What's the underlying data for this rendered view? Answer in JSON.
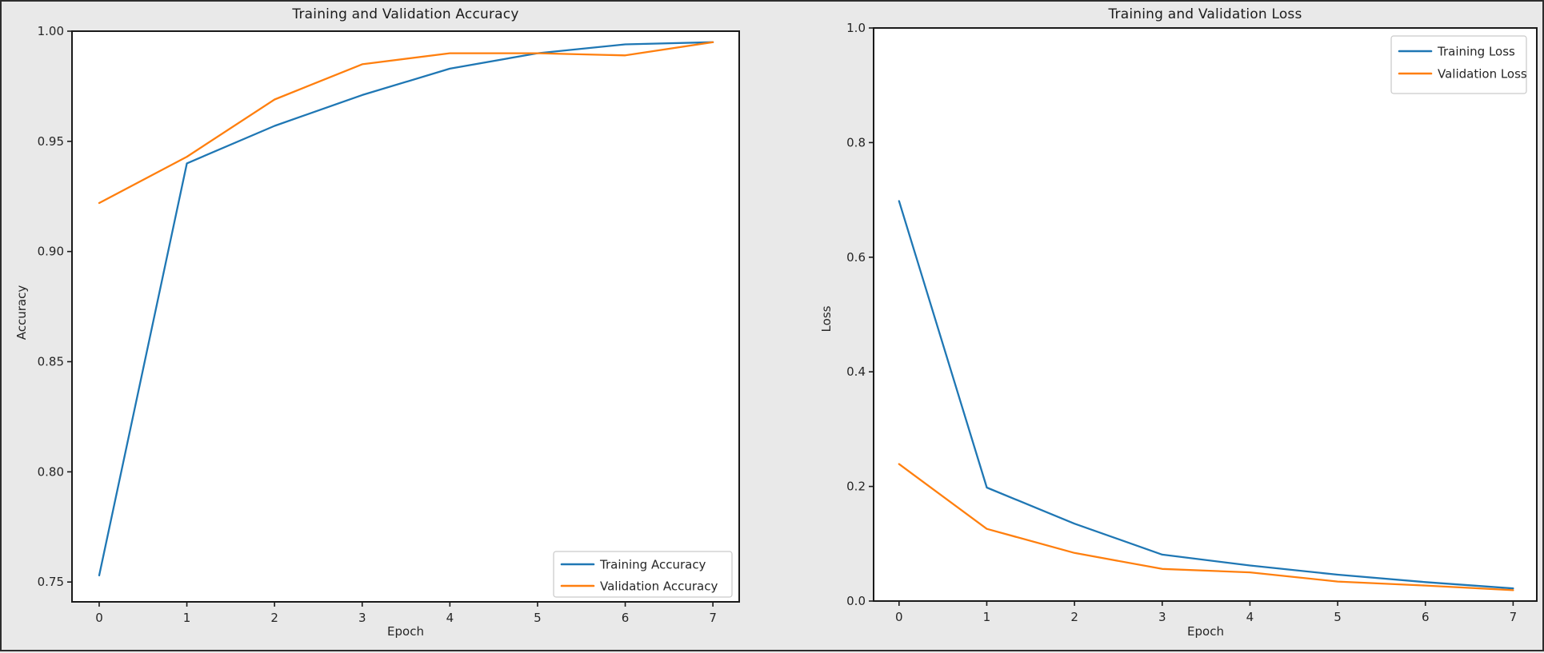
{
  "figure": {
    "background_color": "#e9e9e9",
    "plot_background_color": "#ffffff",
    "spine_color": "#1a1a1a",
    "text_color": "#262626",
    "title_color": "#1c1c1c",
    "legend_border_color": "#c9c9c9"
  },
  "chart_data": [
    {
      "type": "line",
      "title": "Training and Validation Accuracy",
      "xlabel": "Epoch",
      "ylabel": "Accuracy",
      "grid": false,
      "legend_position": "lower right",
      "x": [
        0,
        1,
        2,
        3,
        4,
        5,
        6,
        7
      ],
      "xtick_labels": [
        "0",
        "1",
        "2",
        "3",
        "4",
        "5",
        "6",
        "7"
      ],
      "xlim": [
        -0.31,
        7.3
      ],
      "ylim": [
        0.741,
        1.0
      ],
      "yticks": [
        {
          "value": 0.75,
          "label": "0.75"
        },
        {
          "value": 0.8,
          "label": "0.80"
        },
        {
          "value": 0.85,
          "label": "0.85"
        },
        {
          "value": 0.9,
          "label": "0.90"
        },
        {
          "value": 0.95,
          "label": "0.95"
        },
        {
          "value": 1.0,
          "label": "1.00"
        }
      ],
      "series": [
        {
          "name": "Training Accuracy",
          "color": "#1f77b4",
          "values": [
            0.753,
            0.94,
            0.957,
            0.971,
            0.983,
            0.99,
            0.994,
            0.995
          ]
        },
        {
          "name": "Validation Accuracy",
          "color": "#ff7f0e",
          "values": [
            0.922,
            0.943,
            0.969,
            0.985,
            0.99,
            0.99,
            0.989,
            0.995
          ]
        }
      ]
    },
    {
      "type": "line",
      "title": "Training and Validation Loss",
      "xlabel": "Epoch",
      "ylabel": "Loss",
      "grid": false,
      "legend_position": "upper right",
      "x": [
        0,
        1,
        2,
        3,
        4,
        5,
        6,
        7
      ],
      "xtick_labels": [
        "0",
        "1",
        "2",
        "3",
        "4",
        "5",
        "6",
        "7"
      ],
      "xlim": [
        -0.29,
        7.27
      ],
      "ylim": [
        0.0,
        1.0
      ],
      "yticks": [
        {
          "value": 0.0,
          "label": "0.0"
        },
        {
          "value": 0.2,
          "label": "0.2"
        },
        {
          "value": 0.4,
          "label": "0.4"
        },
        {
          "value": 0.6,
          "label": "0.6"
        },
        {
          "value": 0.8,
          "label": "0.8"
        },
        {
          "value": 1.0,
          "label": "1.0"
        }
      ],
      "series": [
        {
          "name": "Training Loss",
          "color": "#1f77b4",
          "values": [
            0.698,
            0.198,
            0.135,
            0.081,
            0.062,
            0.046,
            0.033,
            0.022
          ]
        },
        {
          "name": "Validation Loss",
          "color": "#ff7f0e",
          "values": [
            0.239,
            0.126,
            0.084,
            0.056,
            0.05,
            0.034,
            0.027,
            0.019
          ]
        }
      ]
    }
  ]
}
